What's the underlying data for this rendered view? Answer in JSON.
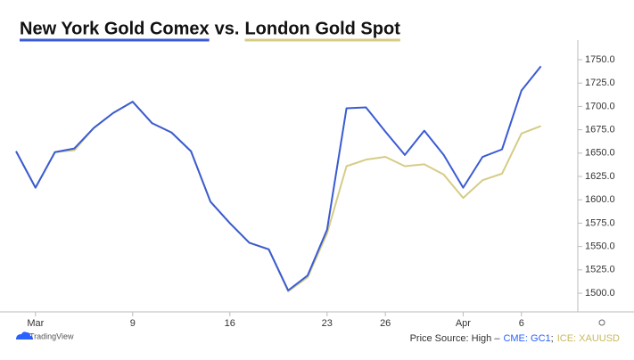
{
  "chart_data": {
    "type": "line",
    "title_connector": "vs.",
    "categories": [
      null,
      "Mar",
      null,
      null,
      null,
      null,
      "9",
      null,
      null,
      null,
      null,
      "16",
      null,
      null,
      null,
      null,
      "23",
      null,
      null,
      "26",
      null,
      null,
      null,
      "Apr",
      null,
      null,
      "6",
      null
    ],
    "series": [
      {
        "name": "New York Gold Comex",
        "color": "#3a5bd4",
        "values": [
          1652,
          1613,
          1651,
          1655,
          1677,
          1693,
          1705,
          1682,
          1672,
          1652,
          1598,
          1575,
          1554,
          1547,
          1503,
          1519,
          1568,
          1698,
          1699,
          1673,
          1648,
          1674,
          1648,
          1613,
          1646,
          1654,
          1717,
          1743
        ]
      },
      {
        "name": "London Gold Spot",
        "color": "#d6cc86",
        "values": [
          1652,
          1613,
          1651,
          1653,
          1677,
          1693,
          1705,
          1682,
          1672,
          1652,
          1598,
          1575,
          1554,
          1547,
          1502,
          1517,
          1564,
          1636,
          1643,
          1646,
          1636,
          1638,
          1627,
          1602,
          1621,
          1628,
          1671,
          1679
        ]
      }
    ],
    "ylim": [
      1480,
      1771
    ],
    "yticks": [
      {
        "value": 1500,
        "label": "1500.0"
      },
      {
        "value": 1525,
        "label": "1525.0"
      },
      {
        "value": 1550,
        "label": "1550.0"
      },
      {
        "value": 1575,
        "label": "1575.0"
      },
      {
        "value": 1600,
        "label": "1600.0"
      },
      {
        "value": 1625,
        "label": "1625.0"
      },
      {
        "value": 1650,
        "label": "1650.0"
      },
      {
        "value": 1675,
        "label": "1675.0"
      },
      {
        "value": 1700,
        "label": "1700.0"
      },
      {
        "value": 1725,
        "label": "1725.0"
      },
      {
        "value": 1750,
        "label": "1750.0"
      }
    ],
    "grid": false,
    "source": {
      "prefix": "Price Source: High –",
      "cme": "CME: GC1",
      "separator": ";",
      "ice": "ICE: XAUUSD",
      "cme_color": "#2962ff",
      "ice_color": "#c8b860"
    },
    "branding": "TradingView"
  }
}
